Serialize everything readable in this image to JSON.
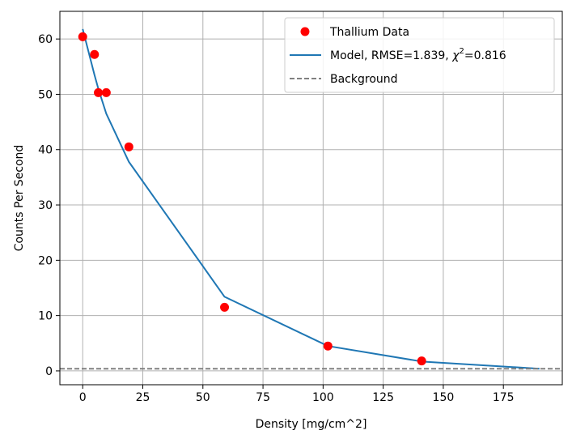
{
  "chart_data": {
    "type": "scatter",
    "title": "",
    "xlabel": "Density [mg/cm^2]",
    "ylabel": "Counts Per Second",
    "xlim": [
      -9.5,
      199.5
    ],
    "ylim": [
      -2.5,
      65
    ],
    "xticks": [
      0,
      25,
      50,
      75,
      100,
      125,
      150,
      175
    ],
    "yticks": [
      0,
      10,
      20,
      30,
      40,
      50,
      60
    ],
    "grid": true,
    "legend_position": "top-right",
    "series": [
      {
        "name": "Thallium Data",
        "kind": "scatter",
        "color": "#ff0000",
        "x": [
          0,
          4.9,
          6.5,
          9.8,
          19.2,
          59,
          102,
          141
        ],
        "y": [
          60.4,
          57.2,
          50.3,
          50.3,
          40.5,
          11.5,
          4.5,
          1.8
        ]
      },
      {
        "name": "Model, RMSE=1.839, χ²=0.816",
        "name_parts": {
          "prefix": "Model, RMSE=1.839, ",
          "chi": "χ",
          "sup": "2",
          "suffix": "=0.816"
        },
        "kind": "line",
        "color": "#1f77b4",
        "x": [
          0,
          4.9,
          6.5,
          9.8,
          19.2,
          59,
          102,
          141,
          190
        ],
        "y": [
          61.8,
          53.5,
          51.0,
          46.5,
          37.8,
          13.4,
          4.5,
          1.7,
          0.4
        ]
      },
      {
        "name": "Background",
        "kind": "hline",
        "color": "#808080",
        "y": 0.4
      }
    ]
  }
}
